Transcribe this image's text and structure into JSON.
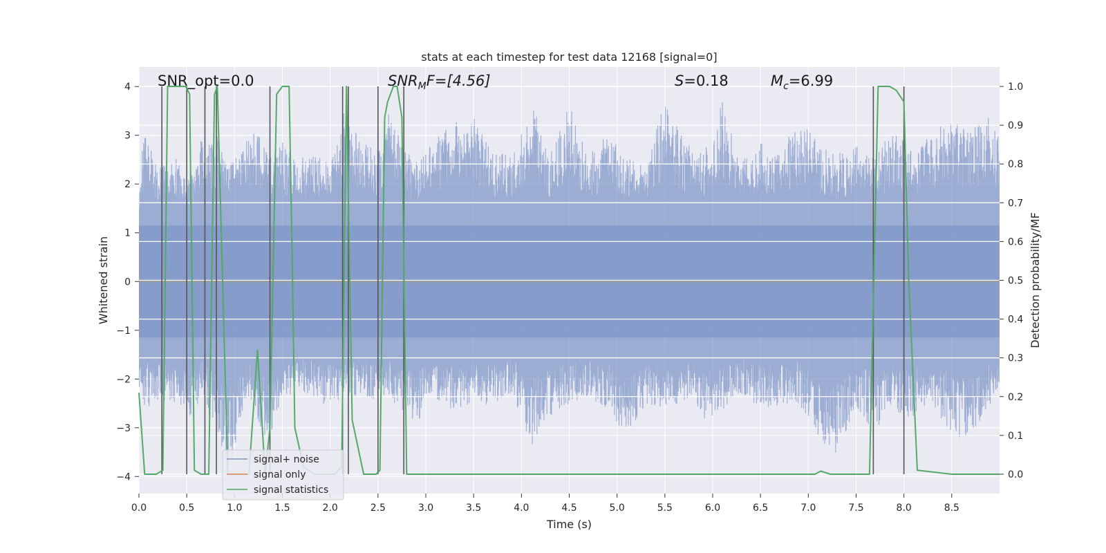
{
  "chart_data": {
    "type": "line",
    "title": "stats at each timestep for test data 12168 [signal=0]",
    "xlabel": "Time (s)",
    "ylabel": "Whitened strain",
    "ylabel_right": "Detection probability/MF",
    "xlim": [
      0.0,
      9.0
    ],
    "ylim": [
      -4.35,
      4.4
    ],
    "ylim_right": [
      -0.05,
      1.05
    ],
    "x_ticks": [
      "0.0",
      "0.5",
      "1.0",
      "1.5",
      "2.0",
      "2.5",
      "3.0",
      "3.5",
      "4.0",
      "4.5",
      "5.0",
      "5.5",
      "6.0",
      "6.5",
      "7.0",
      "7.5",
      "8.0",
      "8.5"
    ],
    "y_ticks": [
      "4",
      "3",
      "2",
      "1",
      "0",
      "−1",
      "−2",
      "−3",
      "−4"
    ],
    "y_ticks_right": [
      "1.0",
      "0.9",
      "0.8",
      "0.7",
      "0.6",
      "0.5",
      "0.4",
      "0.3",
      "0.2",
      "0.1",
      "0.0"
    ],
    "annotations": {
      "snr_opt": "SNR_opt=0.0",
      "snr_mf_main": "SNR",
      "snr_mf_sub": "M",
      "snr_mf_rest": "F=[4.56]",
      "s_italic": "S",
      "s_rest": "=0.18",
      "mc_italic": "M",
      "mc_sub": "c",
      "mc_rest": "=6.99"
    },
    "grid": true,
    "legend": {
      "placement": "lower-left",
      "entries": [
        "signal+ noise",
        "signal only",
        "signal statistics"
      ]
    },
    "series": [
      {
        "name": "signal+ noise",
        "color": "#7e96c8",
        "type": "noise",
        "envelope": [
          [
            0.0,
            1.9,
            -2.3
          ],
          [
            0.05,
            3.1,
            -2.6
          ],
          [
            0.2,
            2.4,
            -2.5
          ],
          [
            0.35,
            2.8,
            -2.5
          ],
          [
            0.5,
            2.1,
            -2.9
          ],
          [
            0.65,
            2.9,
            -2.4
          ],
          [
            0.8,
            3.1,
            -3.0
          ],
          [
            0.95,
            2.4,
            -3.9
          ],
          [
            1.1,
            2.8,
            -2.5
          ],
          [
            1.2,
            3.2,
            -2.6
          ],
          [
            1.35,
            2.6,
            -3.4
          ],
          [
            1.5,
            2.9,
            -2.4
          ],
          [
            1.65,
            2.4,
            -2.3
          ],
          [
            1.8,
            2.8,
            -2.4
          ],
          [
            2.0,
            2.4,
            -2.6
          ],
          [
            2.15,
            3.6,
            -2.3
          ],
          [
            2.3,
            2.9,
            -2.4
          ],
          [
            2.5,
            2.7,
            -2.5
          ],
          [
            2.6,
            3.7,
            -2.3
          ],
          [
            2.75,
            2.8,
            -2.7
          ],
          [
            2.9,
            2.5,
            -2.9
          ],
          [
            3.1,
            2.9,
            -2.4
          ],
          [
            3.25,
            3.3,
            -2.7
          ],
          [
            3.5,
            3.4,
            -2.5
          ],
          [
            3.7,
            2.7,
            -2.6
          ],
          [
            3.9,
            2.6,
            -2.3
          ],
          [
            4.1,
            3.9,
            -3.4
          ],
          [
            4.3,
            2.6,
            -2.8
          ],
          [
            4.5,
            3.7,
            -2.5
          ],
          [
            4.7,
            2.6,
            -2.4
          ],
          [
            4.9,
            3.1,
            -2.6
          ],
          [
            5.1,
            2.6,
            -3.2
          ],
          [
            5.3,
            2.4,
            -2.5
          ],
          [
            5.5,
            3.7,
            -2.6
          ],
          [
            5.7,
            2.9,
            -2.5
          ],
          [
            5.9,
            2.6,
            -2.9
          ],
          [
            6.1,
            3.7,
            -2.8
          ],
          [
            6.3,
            2.6,
            -2.3
          ],
          [
            6.5,
            2.9,
            -2.6
          ],
          [
            6.7,
            2.6,
            -2.6
          ],
          [
            6.9,
            3.4,
            -2.5
          ],
          [
            7.1,
            2.9,
            -3.2
          ],
          [
            7.3,
            2.6,
            -3.6
          ],
          [
            7.5,
            2.9,
            -2.6
          ],
          [
            7.7,
            2.6,
            -3.1
          ],
          [
            7.9,
            3.2,
            -2.7
          ],
          [
            8.1,
            2.7,
            -2.8
          ],
          [
            8.3,
            3.1,
            -2.5
          ],
          [
            8.5,
            3.3,
            -3.2
          ],
          [
            8.7,
            3.1,
            -3.2
          ],
          [
            8.9,
            3.4,
            -2.6
          ],
          [
            9.0,
            2.9,
            -2.4
          ]
        ]
      },
      {
        "name": "signal only",
        "color": "#dd8452",
        "x": [
          0.0,
          9.0
        ],
        "y": [
          0.0,
          0.0
        ]
      },
      {
        "name": "signal statistics",
        "color": "#55a868",
        "axis": "right",
        "x": [
          0.0,
          0.06,
          0.18,
          0.25,
          0.3,
          0.49,
          0.53,
          0.58,
          0.65,
          0.73,
          0.79,
          0.82,
          0.93,
          1.03,
          1.15,
          1.24,
          1.32,
          1.37,
          1.44,
          1.5,
          1.57,
          1.6,
          1.63,
          1.72,
          1.83,
          1.95,
          2.05,
          2.12,
          2.17,
          2.23,
          2.35,
          2.48,
          2.52,
          2.57,
          2.6,
          2.66,
          2.7,
          2.75,
          2.8,
          2.9,
          3.5,
          4.5,
          5.5,
          6.5,
          7.0,
          7.07,
          7.13,
          7.23,
          7.4,
          7.5,
          7.64,
          7.73,
          7.85,
          7.92,
          8.0,
          8.05,
          8.14,
          8.5,
          9.0
        ],
        "y": [
          0.21,
          0.0,
          0.0,
          0.01,
          1.0,
          1.0,
          0.98,
          0.01,
          0.0,
          0.0,
          0.98,
          1.0,
          0.0,
          0.0,
          0.0,
          0.32,
          0.0,
          0.12,
          0.98,
          1.0,
          1.0,
          0.6,
          0.12,
          0.02,
          0.0,
          0.0,
          0.0,
          0.02,
          1.0,
          0.14,
          0.0,
          0.0,
          0.01,
          0.92,
          0.96,
          1.0,
          1.0,
          0.92,
          0.0,
          0.0,
          0.0,
          0.0,
          0.0,
          0.0,
          0.0,
          0.0,
          0.008,
          0.0,
          0.0,
          0.0,
          0.0,
          1.0,
          1.0,
          0.99,
          0.96,
          0.5,
          0.01,
          0.0,
          0.0
        ]
      }
    ],
    "vlines": {
      "color": "#555555",
      "x": [
        0.24,
        0.5,
        0.69,
        0.81,
        1.37,
        2.13,
        2.19,
        2.5,
        2.77,
        7.68,
        8.0
      ]
    }
  }
}
